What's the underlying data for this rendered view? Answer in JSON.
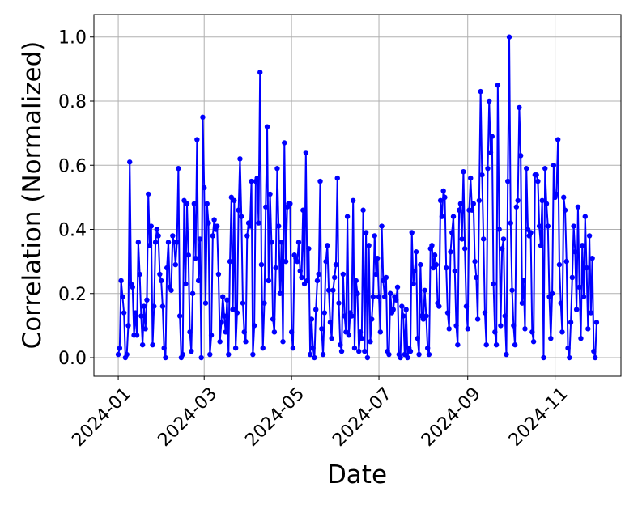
{
  "chart_data": {
    "type": "line",
    "xlabel": "Date",
    "ylabel": "Correlation (Normalized)",
    "color": "#0000ff",
    "grid": true,
    "xlim": [
      -17,
      351
    ],
    "xticks": [
      {
        "value": 0,
        "label": "2024-01"
      },
      {
        "value": 60,
        "label": "2024-03"
      },
      {
        "value": 121,
        "label": "2024-05"
      },
      {
        "value": 182,
        "label": "2024-07"
      },
      {
        "value": 244,
        "label": "2024-09"
      },
      {
        "value": 305,
        "label": "2024-11"
      }
    ],
    "ylim": [
      -0.058,
      1.07
    ],
    "yticks": [
      {
        "value": 0,
        "label": "0.0"
      },
      0.2,
      0.4,
      0.6,
      0.8,
      {
        "value": 1,
        "label": "1.0"
      }
    ],
    "values": [
      0.01,
      0.03,
      0.24,
      0.19,
      0.14,
      0.0,
      0.01,
      0.1,
      0.61,
      0.23,
      0.22,
      0.07,
      0.14,
      0.07,
      0.36,
      0.26,
      0.13,
      0.04,
      0.16,
      0.09,
      0.18,
      0.51,
      0.35,
      0.41,
      0.04,
      0.16,
      0.36,
      0.4,
      0.38,
      0.26,
      0.24,
      0.16,
      0.03,
      0.0,
      0.28,
      0.36,
      0.22,
      0.21,
      0.38,
      0.36,
      0.29,
      0.36,
      0.59,
      0.13,
      0.0,
      0.01,
      0.49,
      0.23,
      0.48,
      0.32,
      0.08,
      0.02,
      0.2,
      0.48,
      0.31,
      0.68,
      0.24,
      0.37,
      0.0,
      0.75,
      0.53,
      0.17,
      0.48,
      0.42,
      0.01,
      0.07,
      0.38,
      0.43,
      0.4,
      0.41,
      0.26,
      0.05,
      0.11,
      0.19,
      0.13,
      0.08,
      0.18,
      0.01,
      0.3,
      0.5,
      0.15,
      0.49,
      0.03,
      0.14,
      0.46,
      0.62,
      0.44,
      0.17,
      0.08,
      0.05,
      0.38,
      0.42,
      0.41,
      0.55,
      0.01,
      0.1,
      0.55,
      0.56,
      0.42,
      0.89,
      0.29,
      0.03,
      0.17,
      0.47,
      0.72,
      0.24,
      0.51,
      0.36,
      0.12,
      0.08,
      0.28,
      0.59,
      0.41,
      0.2,
      0.36,
      0.05,
      0.67,
      0.3,
      0.47,
      0.48,
      0.48,
      0.08,
      0.03,
      0.32,
      0.31,
      0.3,
      0.36,
      0.27,
      0.25,
      0.46,
      0.23,
      0.64,
      0.24,
      0.34,
      0.01,
      0.12,
      0.03,
      0.0,
      0.15,
      0.24,
      0.26,
      0.55,
      0.09,
      0.01,
      0.14,
      0.3,
      0.35,
      0.21,
      0.11,
      0.06,
      0.21,
      0.25,
      0.29,
      0.56,
      0.17,
      0.04,
      0.02,
      0.26,
      0.13,
      0.08,
      0.44,
      0.07,
      0.14,
      0.13,
      0.49,
      0.03,
      0.24,
      0.2,
      0.02,
      0.08,
      0.06,
      0.46,
      0.02,
      0.39,
      0.0,
      0.35,
      0.05,
      0.12,
      0.19,
      0.38,
      0.26,
      0.31,
      0.19,
      0.08,
      0.41,
      0.24,
      0.19,
      0.25,
      0.02,
      0.01,
      0.2,
      0.14,
      0.15,
      0.19,
      0.18,
      0.22,
      0.01,
      0.0,
      0.16,
      0.13,
      0.01,
      0.15,
      0.0,
      0.03,
      0.02,
      0.39,
      0.23,
      0.27,
      0.33,
      0.06,
      0.01,
      0.29,
      0.13,
      0.12,
      0.21,
      0.13,
      0.03,
      0.01,
      0.34,
      0.35,
      0.28,
      0.32,
      0.29,
      0.17,
      0.16,
      0.49,
      0.44,
      0.52,
      0.5,
      0.28,
      0.14,
      0.09,
      0.33,
      0.39,
      0.44,
      0.27,
      0.1,
      0.04,
      0.46,
      0.48,
      0.37,
      0.58,
      0.34,
      0.16,
      0.09,
      0.46,
      0.56,
      0.46,
      0.48,
      0.3,
      0.25,
      0.12,
      0.49,
      0.83,
      0.57,
      0.37,
      0.14,
      0.04,
      0.59,
      0.8,
      0.64,
      0.69,
      0.23,
      0.08,
      0.04,
      0.85,
      0.4,
      0.1,
      0.34,
      0.37,
      0.13,
      0.01,
      0.55,
      1.0,
      0.42,
      0.21,
      0.1,
      0.04,
      0.47,
      0.49,
      0.78,
      0.63,
      0.17,
      0.24,
      0.09,
      0.59,
      0.4,
      0.38,
      0.39,
      0.08,
      0.05,
      0.57,
      0.57,
      0.55,
      0.41,
      0.35,
      0.49,
      0.0,
      0.59,
      0.48,
      0.41,
      0.19,
      0.06,
      0.2,
      0.6,
      0.5,
      0.51,
      0.68,
      0.29,
      0.17,
      0.08,
      0.5,
      0.46,
      0.3,
      0.03,
      0.0,
      0.11,
      0.25,
      0.41,
      0.33,
      0.15,
      0.47,
      0.22,
      0.06,
      0.35,
      0.19,
      0.44,
      0.28,
      0.09,
      0.38,
      0.14,
      0.31,
      0.02,
      0.0,
      0.11
    ]
  }
}
